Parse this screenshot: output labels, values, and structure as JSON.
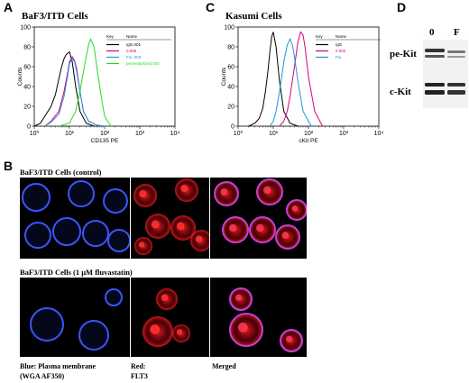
{
  "panels": {
    "A": {
      "letter": "A",
      "title": "BaF3/ITD Cells",
      "chart_data": {
        "type": "line",
        "title": "BaF3/ITD Cells",
        "xlabel": "CD135 PE",
        "ylabel": "Counts",
        "xscale": "log",
        "xlim": [
          1,
          10000
        ],
        "ylim": [
          0,
          100
        ],
        "x_ticks": [
          "10⁰",
          "10¹",
          "10²",
          "10³",
          "10⁴"
        ],
        "y_ticks": [
          "0",
          "20",
          "40",
          "60",
          "80",
          "100"
        ],
        "legend": {
          "placement": "top-right",
          "headers": [
            "Key",
            "Name"
          ]
        },
        "series": [
          {
            "name": "IgG.001",
            "color": "#000000",
            "x": [
              1,
              1.5,
              2,
              3,
              4,
              5,
              6,
              7,
              8,
              10,
              12,
              15,
              20,
              30,
              50
            ],
            "y": [
              0,
              3,
              10,
              20,
              32,
              48,
              60,
              68,
              72,
              75,
              65,
              40,
              15,
              3,
              0
            ]
          },
          {
            "name": "0.005",
            "color": "#d6007f",
            "x": [
              2,
              3,
              5,
              7,
              9,
              10,
              12,
              14,
              16,
              20,
              25,
              35,
              60,
              100
            ],
            "y": [
              0,
              5,
              15,
              35,
              55,
              65,
              70,
              66,
              58,
              35,
              15,
              5,
              1,
              0
            ]
          },
          {
            "name": "Flu .003",
            "color": "#2196d8",
            "x": [
              2,
              3,
              5,
              7,
              9,
              10,
              12,
              14,
              16,
              20,
              25,
              35,
              60,
              100
            ],
            "y": [
              0,
              4,
              12,
              30,
              52,
              63,
              68,
              65,
              55,
              35,
              15,
              5,
              1,
              0
            ]
          },
          {
            "name": "permeabilized.002",
            "color": "#22dd22",
            "x": [
              5,
              10,
              15,
              20,
              25,
              30,
              35,
              40,
              50,
              60,
              80,
              100,
              150
            ],
            "y": [
              0,
              3,
              15,
              35,
              55,
              70,
              82,
              88,
              80,
              60,
              30,
              10,
              0
            ]
          }
        ]
      }
    },
    "C": {
      "letter": "C",
      "title": "Kasumi Cells",
      "chart_data": {
        "type": "line",
        "title": "Kasumi Cells",
        "xlabel": "cKit PE",
        "ylabel": "Counts",
        "xscale": "log",
        "xlim": [
          1,
          10000
        ],
        "ylim": [
          0,
          100
        ],
        "x_ticks": [
          "10⁰",
          "10¹",
          "10²",
          "10³",
          "10⁴"
        ],
        "y_ticks": [
          "0",
          "20",
          "40",
          "60",
          "80",
          "100"
        ],
        "legend": {
          "placement": "top-right",
          "headers": [
            "Key",
            "Name"
          ]
        },
        "series": [
          {
            "name": "IgG",
            "color": "#000000",
            "x": [
              2,
              3,
              4,
              5,
              6,
              7,
              8,
              9,
              10,
              12,
              15,
              20,
              30,
              50
            ],
            "y": [
              0,
              3,
              8,
              18,
              35,
              55,
              75,
              90,
              95,
              80,
              45,
              15,
              3,
              0
            ]
          },
          {
            "name": "0.002",
            "color": "#d6007f",
            "x": [
              15,
              20,
              25,
              30,
              40,
              50,
              60,
              70,
              80,
              100,
              150,
              250
            ],
            "y": [
              0,
              5,
              15,
              30,
              60,
              85,
              95,
              92,
              80,
              50,
              15,
              0
            ]
          },
          {
            "name": "Flu",
            "color": "#2196d8",
            "x": [
              8,
              10,
              12,
              15,
              20,
              25,
              30,
              35,
              40,
              50,
              70,
              120
            ],
            "y": [
              0,
              5,
              15,
              35,
              65,
              82,
              88,
              82,
              70,
              45,
              15,
              0
            ]
          }
        ]
      }
    },
    "D": {
      "letter": "D",
      "lanes": [
        "0",
        "F"
      ],
      "bands": [
        "pe-Kit",
        "c-Kit"
      ]
    },
    "B": {
      "letter": "B",
      "control_label": "BaF3/ITD Cells (control)",
      "treated_label": "BaF3/ITD Cells (1 μM fluvastatin)",
      "captions": {
        "blue": [
          "Blue: Plasma membrane",
          "(WGA AF350)"
        ],
        "red": [
          "Red:",
          "FLT3"
        ],
        "merged": [
          "Merged"
        ]
      },
      "colors": {
        "blue": "#3a55ff",
        "red": "#ff2020",
        "merged": "#c040d8"
      }
    }
  }
}
